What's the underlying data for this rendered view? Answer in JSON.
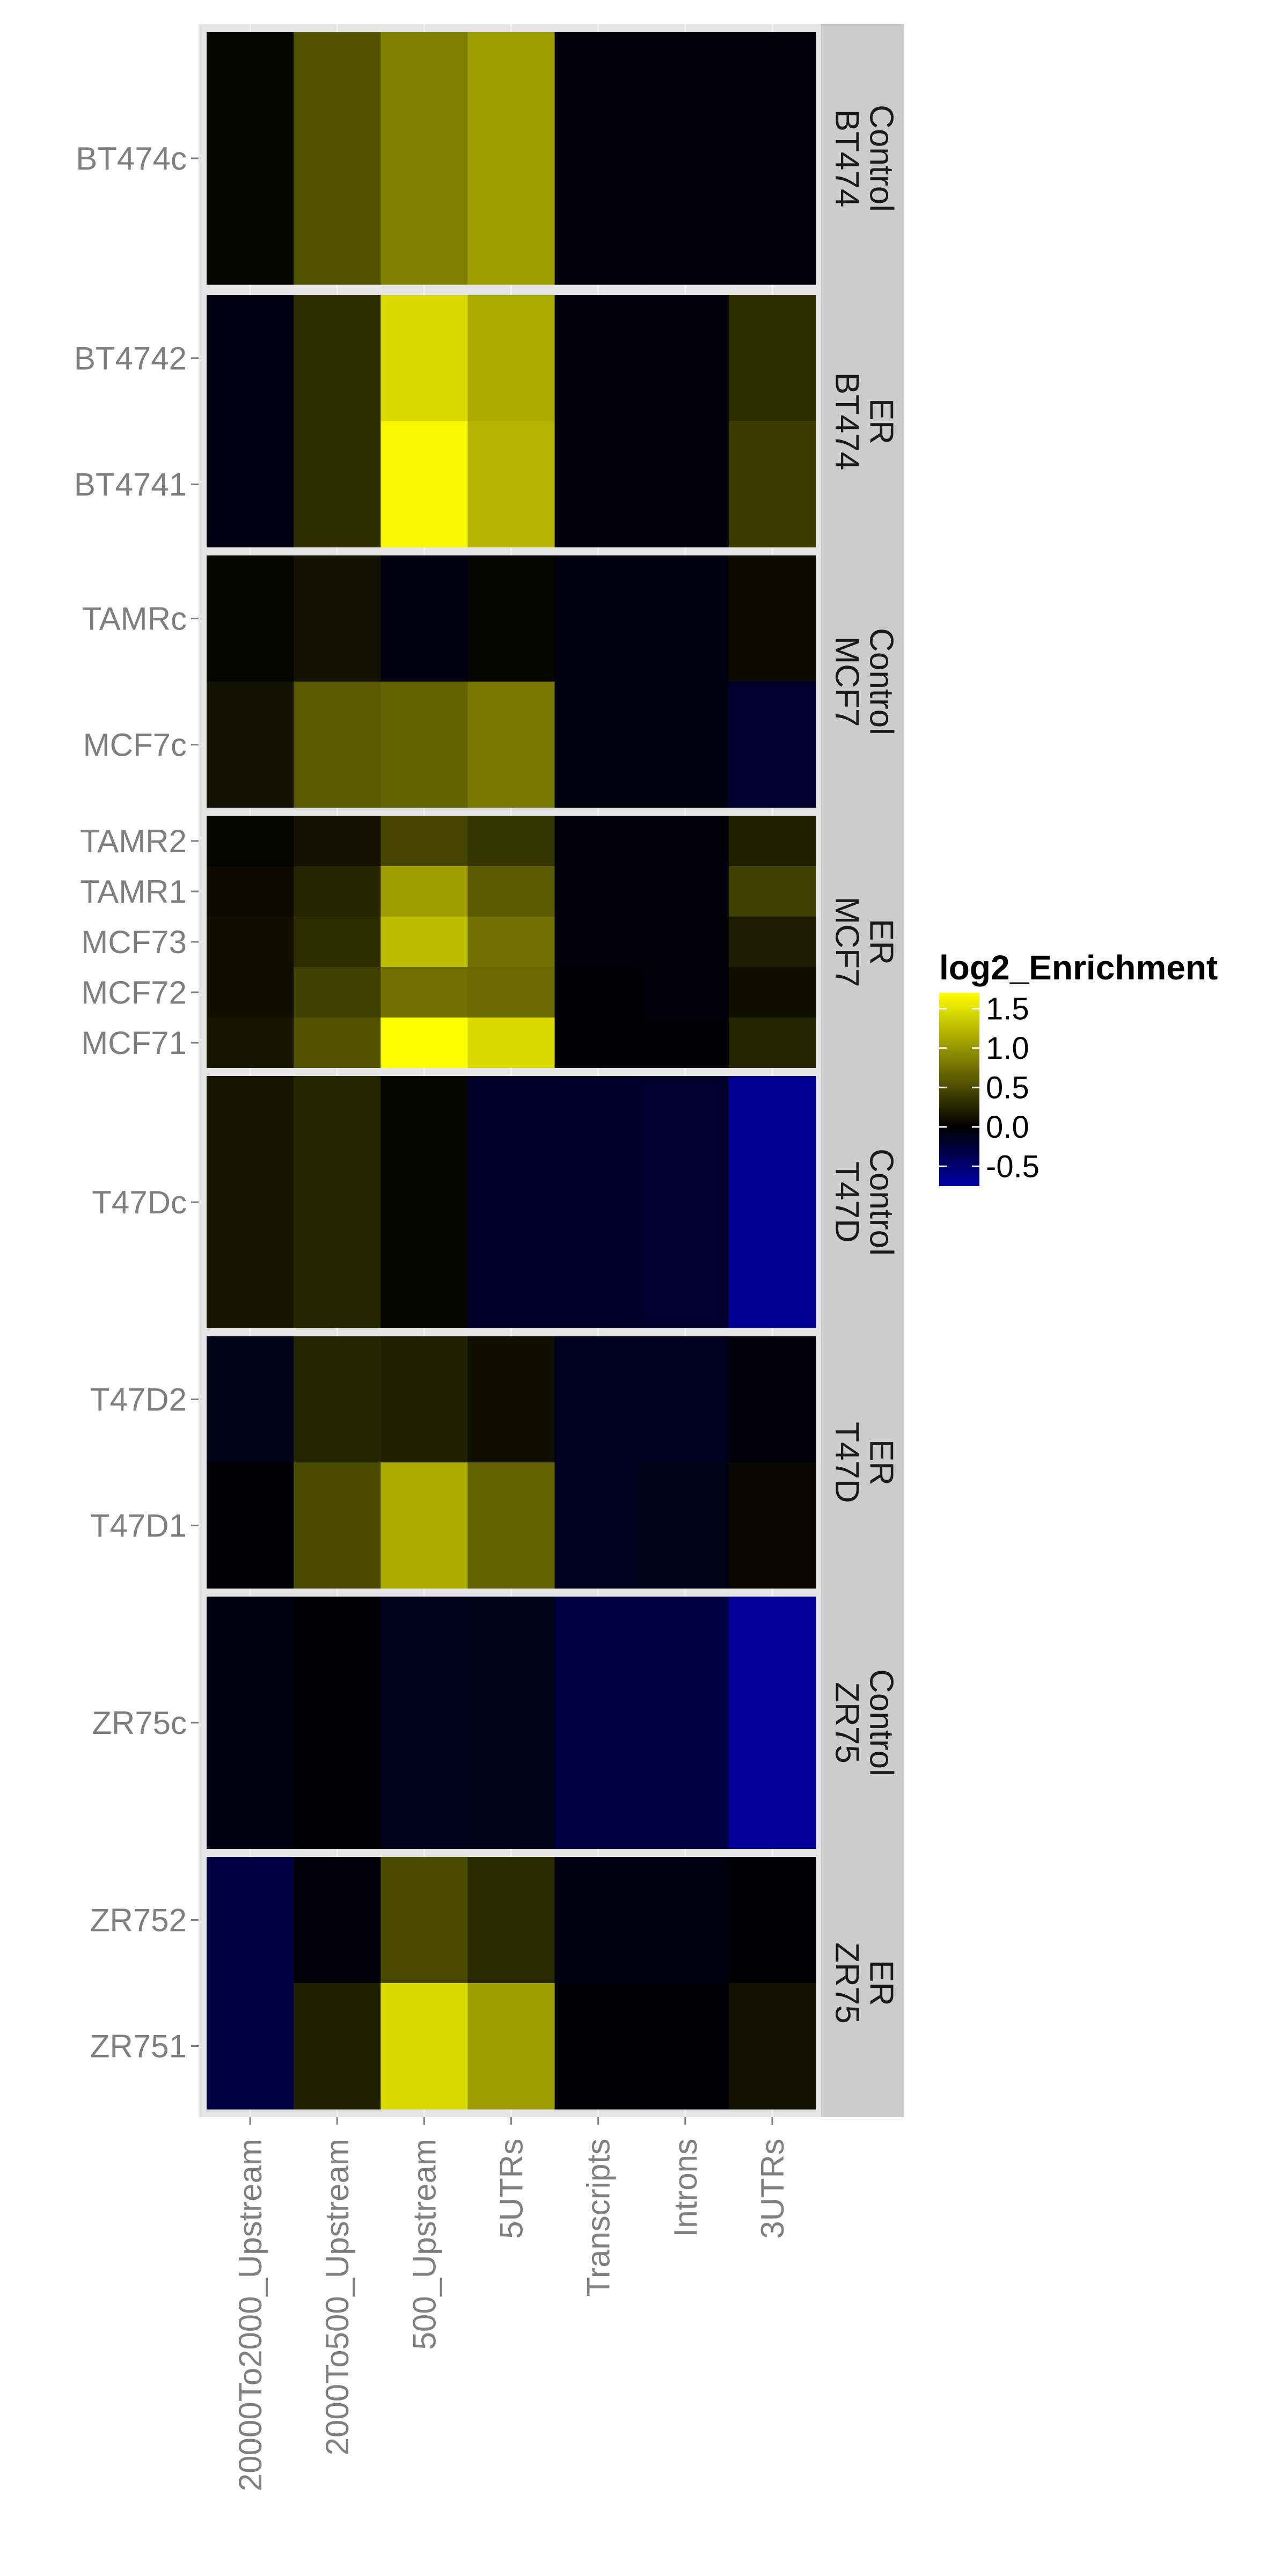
{
  "chart_data": {
    "type": "heatmap",
    "x_categories": [
      "20000To2000_Upstream",
      "2000To500_Upstream",
      "500_Upstream",
      "5UTRs",
      "Transcripts",
      "Introns",
      "3UTRs"
    ],
    "legend": {
      "title": "log2_Enrichment",
      "ticks": [
        1.5,
        1.0,
        0.5,
        0.0,
        -0.5
      ],
      "tick_labels": [
        "1.5",
        "1.0",
        "0.5",
        "0.0",
        "-0.5"
      ],
      "min": -0.75,
      "max": 1.7,
      "colors": {
        "low": "#0000a8",
        "mid": "#000000",
        "high": "#ffff00"
      }
    },
    "panels": [
      {
        "strip": [
          "Control",
          "BT474"
        ],
        "rows": [
          {
            "label": "BT474c",
            "values": [
              0.02,
              0.55,
              0.85,
              1.05,
              -0.05,
              -0.05,
              -0.05
            ]
          }
        ]
      },
      {
        "strip": [
          "ER",
          "BT474"
        ],
        "rows": [
          {
            "label": "BT4742",
            "values": [
              -0.08,
              0.3,
              1.45,
              1.15,
              -0.05,
              -0.05,
              0.3
            ]
          },
          {
            "label": "BT4741",
            "values": [
              -0.08,
              0.3,
              1.65,
              1.2,
              -0.05,
              -0.05,
              0.4
            ]
          }
        ]
      },
      {
        "strip": [
          "Control",
          "MCF7"
        ],
        "rows": [
          {
            "label": "TAMRc",
            "values": [
              0.03,
              0.12,
              -0.07,
              0.02,
              -0.07,
              -0.07,
              0.07
            ]
          },
          {
            "label": "MCF7c",
            "values": [
              0.12,
              0.6,
              0.65,
              0.8,
              -0.07,
              -0.07,
              -0.2
            ]
          }
        ]
      },
      {
        "strip": [
          "ER",
          "MCF7"
        ],
        "rows": [
          {
            "label": "TAMR2",
            "values": [
              0.03,
              0.12,
              0.45,
              0.35,
              -0.05,
              -0.05,
              0.2
            ]
          },
          {
            "label": "TAMR1",
            "values": [
              0.07,
              0.25,
              1.05,
              0.6,
              -0.05,
              -0.05,
              0.42
            ]
          },
          {
            "label": "MCF73",
            "values": [
              0.1,
              0.3,
              1.25,
              0.75,
              -0.05,
              -0.05,
              0.18
            ]
          },
          {
            "label": "MCF72",
            "values": [
              0.1,
              0.42,
              0.75,
              0.7,
              -0.03,
              -0.05,
              0.1
            ]
          },
          {
            "label": "MCF71",
            "values": [
              0.15,
              0.55,
              1.7,
              1.45,
              -0.03,
              -0.03,
              0.25
            ]
          }
        ]
      },
      {
        "strip": [
          "Control",
          "T47D"
        ],
        "rows": [
          {
            "label": "T47Dc",
            "values": [
              0.15,
              0.25,
              0.02,
              -0.18,
              -0.18,
              -0.2,
              -0.65
            ]
          }
        ]
      },
      {
        "strip": [
          "ER",
          "T47D"
        ],
        "rows": [
          {
            "label": "T47D2",
            "values": [
              -0.1,
              0.25,
              0.22,
              0.1,
              -0.13,
              -0.13,
              -0.05
            ]
          },
          {
            "label": "T47D1",
            "values": [
              -0.02,
              0.5,
              1.15,
              0.65,
              -0.13,
              -0.1,
              0.05
            ]
          }
        ]
      },
      {
        "strip": [
          "Control",
          "ZR75"
        ],
        "rows": [
          {
            "label": "ZR75c",
            "values": [
              -0.07,
              -0.02,
              -0.12,
              -0.1,
              -0.3,
              -0.3,
              -0.68
            ]
          }
        ]
      },
      {
        "strip": [
          "ER",
          "ZR75"
        ],
        "rows": [
          {
            "label": "ZR752",
            "values": [
              -0.3,
              -0.05,
              0.5,
              0.28,
              -0.07,
              -0.07,
              -0.02
            ]
          },
          {
            "label": "ZR751",
            "values": [
              -0.3,
              0.22,
              1.45,
              1.05,
              -0.03,
              -0.02,
              0.12
            ]
          }
        ]
      }
    ]
  }
}
